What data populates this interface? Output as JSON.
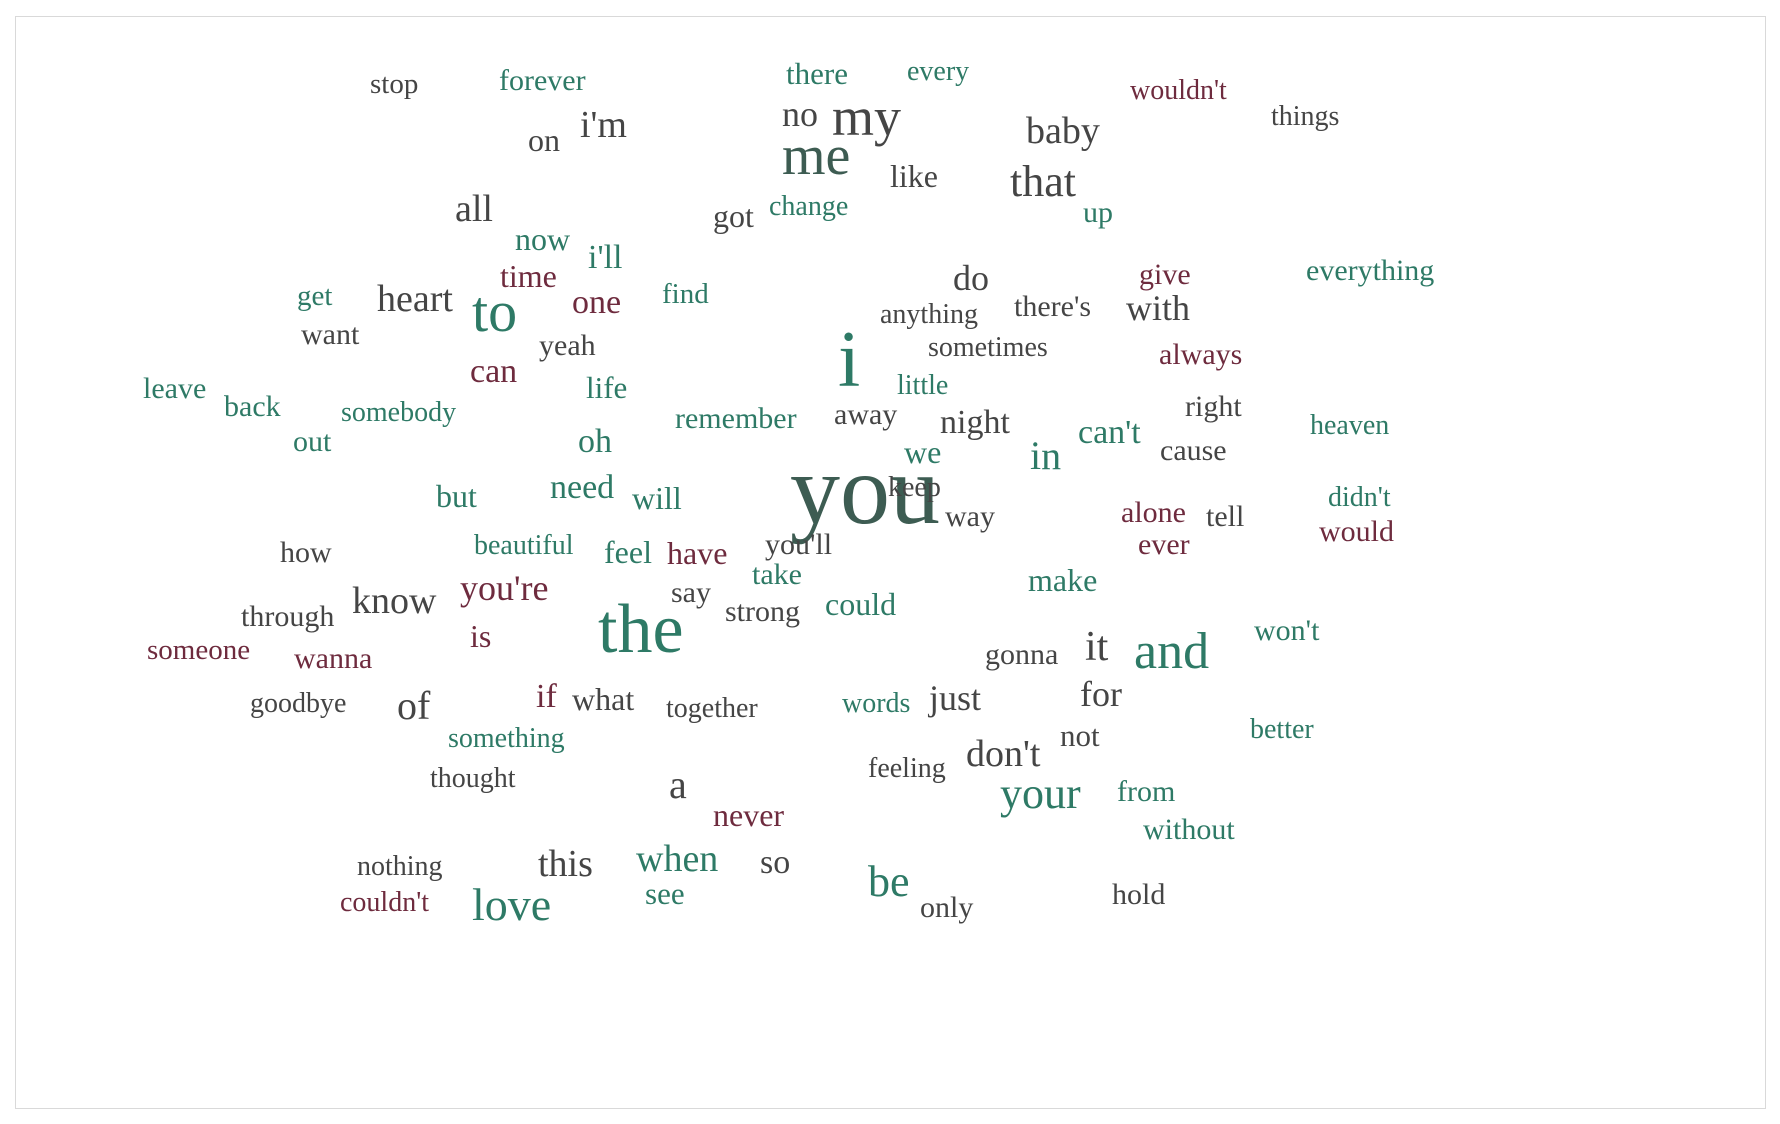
{
  "chart_data": {
    "type": "wordcloud",
    "palette": {
      "g": "#2e7a66",
      "d": "#454545",
      "m": "#6e2b3e",
      "s": "#3d5c52"
    },
    "words": [
      {
        "text": "you",
        "c": "s",
        "w": 100
      },
      {
        "text": "the",
        "c": "g",
        "w": 62
      },
      {
        "text": "i",
        "c": "g",
        "w": 60
      },
      {
        "text": "me",
        "c": "s",
        "w": 50
      },
      {
        "text": "love",
        "c": "g",
        "w": 44
      },
      {
        "text": "to",
        "c": "g",
        "w": 50
      },
      {
        "text": "and",
        "c": "g",
        "w": 47
      },
      {
        "text": "my",
        "c": "d",
        "w": 46
      },
      {
        "text": "that",
        "c": "d",
        "w": 40
      },
      {
        "text": "your",
        "c": "g",
        "w": 40
      },
      {
        "text": "be",
        "c": "g",
        "w": 40
      },
      {
        "text": "it",
        "c": "d",
        "w": 38
      },
      {
        "text": "in",
        "c": "g",
        "w": 36
      },
      {
        "text": "when",
        "c": "g",
        "w": 36
      },
      {
        "text": "baby",
        "c": "d",
        "w": 36
      },
      {
        "text": "heart",
        "c": "d",
        "w": 36
      },
      {
        "text": "know",
        "c": "d",
        "w": 35
      },
      {
        "text": "you're",
        "c": "m",
        "w": 34
      },
      {
        "text": "all",
        "c": "d",
        "w": 34
      },
      {
        "text": "a",
        "c": "d",
        "w": 36
      },
      {
        "text": "don't",
        "c": "d",
        "w": 34
      },
      {
        "text": "of",
        "c": "d",
        "w": 34
      },
      {
        "text": "this",
        "c": "d",
        "w": 33
      },
      {
        "text": "i'm",
        "c": "d",
        "w": 33
      },
      {
        "text": "one",
        "c": "m",
        "w": 32
      },
      {
        "text": "just",
        "c": "d",
        "w": 32
      },
      {
        "text": "for",
        "c": "d",
        "w": 32
      },
      {
        "text": "do",
        "c": "d",
        "w": 32
      },
      {
        "text": "with",
        "c": "d",
        "w": 32
      },
      {
        "text": "can't",
        "c": "g",
        "w": 31
      },
      {
        "text": "oh",
        "c": "g",
        "w": 31
      },
      {
        "text": "no",
        "c": "d",
        "w": 33
      },
      {
        "text": "can",
        "c": "m",
        "w": 31
      },
      {
        "text": "night",
        "c": "d",
        "w": 31
      },
      {
        "text": "need",
        "c": "g",
        "w": 31
      },
      {
        "text": "i'll",
        "c": "g",
        "w": 31
      },
      {
        "text": "so",
        "c": "d",
        "w": 30
      },
      {
        "text": "never",
        "c": "m",
        "w": 30
      },
      {
        "text": "like",
        "c": "d",
        "w": 30
      },
      {
        "text": "time",
        "c": "m",
        "w": 30
      },
      {
        "text": "if",
        "c": "m",
        "w": 30
      },
      {
        "text": "is",
        "c": "m",
        "w": 30
      },
      {
        "text": "now",
        "c": "g",
        "w": 30
      },
      {
        "text": "could",
        "c": "g",
        "w": 30
      },
      {
        "text": "make",
        "c": "g",
        "w": 30
      },
      {
        "text": "we",
        "c": "g",
        "w": 30
      },
      {
        "text": "will",
        "c": "g",
        "w": 30
      },
      {
        "text": "but",
        "c": "g",
        "w": 30
      },
      {
        "text": "feel",
        "c": "g",
        "w": 30
      },
      {
        "text": "have",
        "c": "m",
        "w": 30
      },
      {
        "text": "what",
        "c": "d",
        "w": 30
      },
      {
        "text": "on",
        "c": "d",
        "w": 30
      },
      {
        "text": "not",
        "c": "d",
        "w": 29
      },
      {
        "text": "there",
        "c": "g",
        "w": 29
      },
      {
        "text": "see",
        "c": "g",
        "w": 29
      },
      {
        "text": "life",
        "c": "g",
        "w": 29
      },
      {
        "text": "would",
        "c": "m",
        "w": 29
      },
      {
        "text": "wanna",
        "c": "m",
        "w": 28
      },
      {
        "text": "through",
        "c": "d",
        "w": 28
      },
      {
        "text": "yeah",
        "c": "d",
        "w": 28
      },
      {
        "text": "ever",
        "c": "m",
        "w": 28
      },
      {
        "text": "gonna",
        "c": "d",
        "w": 28
      },
      {
        "text": "from",
        "c": "g",
        "w": 28
      },
      {
        "text": "without",
        "c": "g",
        "w": 28
      },
      {
        "text": "everything",
        "c": "g",
        "w": 28
      },
      {
        "text": "there's",
        "c": "d",
        "w": 28
      },
      {
        "text": "away",
        "c": "d",
        "w": 28
      },
      {
        "text": "right",
        "c": "d",
        "w": 28
      },
      {
        "text": "remember",
        "c": "g",
        "w": 28
      },
      {
        "text": "out",
        "c": "g",
        "w": 28
      },
      {
        "text": "back",
        "c": "g",
        "w": 28
      },
      {
        "text": "how",
        "c": "d",
        "w": 28
      },
      {
        "text": "take",
        "c": "g",
        "w": 28
      },
      {
        "text": "forever",
        "c": "g",
        "w": 28
      },
      {
        "text": "cause",
        "c": "d",
        "w": 28
      },
      {
        "text": "say",
        "c": "d",
        "w": 28
      },
      {
        "text": "you'll",
        "c": "d",
        "w": 28
      },
      {
        "text": "won't",
        "c": "g",
        "w": 28
      },
      {
        "text": "feeling",
        "c": "d",
        "w": 27
      },
      {
        "text": "alone",
        "c": "m",
        "w": 27
      },
      {
        "text": "stop",
        "c": "d",
        "w": 27
      },
      {
        "text": "every",
        "c": "g",
        "w": 27
      },
      {
        "text": "always",
        "c": "m",
        "w": 27
      },
      {
        "text": "get",
        "c": "g",
        "w": 27
      },
      {
        "text": "give",
        "c": "m",
        "w": 27
      },
      {
        "text": "want",
        "c": "d",
        "w": 27
      },
      {
        "text": "strong",
        "c": "d",
        "w": 27
      },
      {
        "text": "tell",
        "c": "d",
        "w": 27
      },
      {
        "text": "little",
        "c": "g",
        "w": 27
      },
      {
        "text": "keep",
        "c": "d",
        "w": 27
      },
      {
        "text": "nothing",
        "c": "d",
        "w": 27
      },
      {
        "text": "way",
        "c": "d",
        "w": 27
      },
      {
        "text": "find",
        "c": "g",
        "w": 27
      },
      {
        "text": "thought",
        "c": "d",
        "w": 27
      },
      {
        "text": "up",
        "c": "g",
        "w": 27
      },
      {
        "text": "got",
        "c": "d",
        "w": 27
      },
      {
        "text": "someone",
        "c": "m",
        "w": 27
      },
      {
        "text": "didn't",
        "c": "g",
        "w": 27
      },
      {
        "text": "heaven",
        "c": "g",
        "w": 27
      },
      {
        "text": "leave",
        "c": "g",
        "w": 27
      },
      {
        "text": "things",
        "c": "d",
        "w": 27
      },
      {
        "text": "change",
        "c": "g",
        "w": 26
      },
      {
        "text": "anything",
        "c": "d",
        "w": 26
      },
      {
        "text": "sometimes",
        "c": "d",
        "w": 26
      },
      {
        "text": "beautiful",
        "c": "g",
        "w": 26
      },
      {
        "text": "somebody",
        "c": "g",
        "w": 26
      },
      {
        "text": "words",
        "c": "g",
        "w": 26
      },
      {
        "text": "together",
        "c": "d",
        "w": 26
      },
      {
        "text": "something",
        "c": "g",
        "w": 26
      },
      {
        "text": "goodbye",
        "c": "d",
        "w": 26
      },
      {
        "text": "better",
        "c": "g",
        "w": 26
      },
      {
        "text": "wouldn't",
        "c": "m",
        "w": 26
      },
      {
        "text": "hold",
        "c": "d",
        "w": 28
      },
      {
        "text": "couldn't",
        "c": "m",
        "w": 26
      },
      {
        "text": "only",
        "c": "d",
        "w": 28
      }
    ]
  }
}
